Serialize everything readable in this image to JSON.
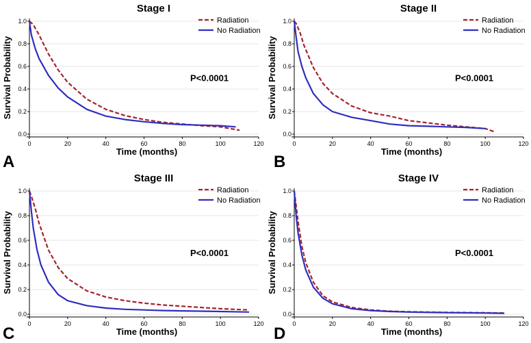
{
  "chart_data": [
    {
      "type": "line",
      "panel": "A",
      "title": "Stage I",
      "xlabel": "Time (months)",
      "ylabel": "Survival Probability",
      "xlim": [
        0,
        120
      ],
      "ylim": [
        0,
        1
      ],
      "xticks": [
        "0",
        "20",
        "40",
        "60",
        "80",
        "100",
        "120"
      ],
      "yticks": [
        "0.0",
        "0.2",
        "0.4",
        "0.6",
        "0.8",
        "1.0"
      ],
      "annotation": "P<0.0001",
      "legend_position": "top-right",
      "series": [
        {
          "name": "Radiation",
          "color": "#a3222d",
          "dash": "dashed",
          "x": [
            0,
            2,
            5,
            10,
            15,
            20,
            30,
            40,
            50,
            60,
            70,
            80,
            90,
            100,
            110
          ],
          "y": [
            1.0,
            0.97,
            0.88,
            0.71,
            0.57,
            0.46,
            0.31,
            0.22,
            0.165,
            0.13,
            0.105,
            0.09,
            0.075,
            0.065,
            0.035
          ]
        },
        {
          "name": "No Radiation",
          "color": "#2f2dbf",
          "dash": "solid",
          "x": [
            0,
            1,
            3,
            5,
            10,
            15,
            20,
            30,
            40,
            50,
            60,
            70,
            80,
            90,
            100,
            108
          ],
          "y": [
            1.0,
            0.88,
            0.76,
            0.67,
            0.52,
            0.41,
            0.33,
            0.22,
            0.16,
            0.13,
            0.11,
            0.095,
            0.085,
            0.08,
            0.075,
            0.065
          ]
        }
      ]
    },
    {
      "type": "line",
      "panel": "B",
      "title": "Stage II",
      "xlabel": "Time (months)",
      "ylabel": "Survival Probability",
      "xlim": [
        0,
        120
      ],
      "ylim": [
        0,
        1
      ],
      "xticks": [
        "0",
        "20",
        "40",
        "60",
        "80",
        "100",
        "120"
      ],
      "yticks": [
        "0.0",
        "0.2",
        "0.4",
        "0.6",
        "0.8",
        "1.0"
      ],
      "annotation": "P<0.0001",
      "legend_position": "top-right",
      "series": [
        {
          "name": "Radiation",
          "color": "#a3222d",
          "dash": "dashed",
          "x": [
            0,
            1,
            3,
            5,
            10,
            15,
            20,
            30,
            40,
            50,
            60,
            70,
            80,
            90,
            100,
            105
          ],
          "y": [
            1.0,
            0.98,
            0.9,
            0.79,
            0.59,
            0.45,
            0.36,
            0.25,
            0.19,
            0.16,
            0.12,
            0.1,
            0.08,
            0.065,
            0.05,
            0.02
          ]
        },
        {
          "name": "No Radiation",
          "color": "#2f2dbf",
          "dash": "solid",
          "x": [
            0,
            1,
            2,
            4,
            6,
            10,
            15,
            20,
            30,
            40,
            50,
            60,
            70,
            80,
            90,
            100
          ],
          "y": [
            1.0,
            0.86,
            0.73,
            0.6,
            0.5,
            0.36,
            0.26,
            0.2,
            0.15,
            0.12,
            0.09,
            0.075,
            0.07,
            0.065,
            0.06,
            0.05
          ]
        }
      ]
    },
    {
      "type": "line",
      "panel": "C",
      "title": "Stage III",
      "xlabel": "Time (months)",
      "ylabel": "Survival Probability",
      "xlim": [
        0,
        120
      ],
      "ylim": [
        0,
        1
      ],
      "xticks": [
        "0",
        "20",
        "40",
        "60",
        "80",
        "100",
        "120"
      ],
      "yticks": [
        "0.0",
        "0.2",
        "0.4",
        "0.6",
        "0.8",
        "1.0"
      ],
      "annotation": "P<0.0001",
      "legend_position": "top-right",
      "series": [
        {
          "name": "Radiation",
          "color": "#a3222d",
          "dash": "dashed",
          "x": [
            0,
            1,
            3,
            5,
            10,
            15,
            20,
            30,
            40,
            50,
            60,
            70,
            80,
            90,
            100,
            115
          ],
          "y": [
            1.0,
            0.96,
            0.86,
            0.74,
            0.52,
            0.38,
            0.29,
            0.19,
            0.14,
            0.11,
            0.09,
            0.075,
            0.065,
            0.055,
            0.045,
            0.035
          ]
        },
        {
          "name": "No Radiation",
          "color": "#2f2dbf",
          "dash": "solid",
          "x": [
            0,
            1,
            2,
            4,
            6,
            10,
            15,
            20,
            30,
            40,
            50,
            60,
            70,
            80,
            90,
            100,
            115
          ],
          "y": [
            1.0,
            0.84,
            0.7,
            0.52,
            0.4,
            0.26,
            0.16,
            0.11,
            0.07,
            0.05,
            0.04,
            0.035,
            0.03,
            0.027,
            0.025,
            0.022,
            0.018
          ]
        }
      ]
    },
    {
      "type": "line",
      "panel": "D",
      "title": "Stage IV",
      "xlabel": "Time (months)",
      "ylabel": "Survival Probability",
      "xlim": [
        0,
        120
      ],
      "ylim": [
        0,
        1
      ],
      "xticks": [
        "0",
        "20",
        "40",
        "60",
        "80",
        "100",
        "120"
      ],
      "yticks": [
        "0.0",
        "0.2",
        "0.4",
        "0.6",
        "0.8",
        "1.0"
      ],
      "annotation": "P<0.0001",
      "legend_position": "top-right",
      "series": [
        {
          "name": "Radiation",
          "color": "#a3222d",
          "dash": "dashed",
          "x": [
            0,
            1,
            2,
            4,
            6,
            10,
            15,
            20,
            30,
            40,
            50,
            60,
            80,
            100,
            110
          ],
          "y": [
            1.0,
            0.88,
            0.75,
            0.55,
            0.42,
            0.26,
            0.15,
            0.1,
            0.055,
            0.035,
            0.025,
            0.02,
            0.015,
            0.012,
            0.01
          ]
        },
        {
          "name": "No Radiation",
          "color": "#2f2dbf",
          "dash": "solid",
          "x": [
            0,
            1,
            2,
            4,
            6,
            10,
            15,
            20,
            30,
            40,
            50,
            60,
            80,
            100,
            110
          ],
          "y": [
            1.0,
            0.8,
            0.66,
            0.48,
            0.36,
            0.22,
            0.13,
            0.085,
            0.045,
            0.03,
            0.022,
            0.018,
            0.013,
            0.01,
            0.008
          ]
        }
      ]
    }
  ]
}
